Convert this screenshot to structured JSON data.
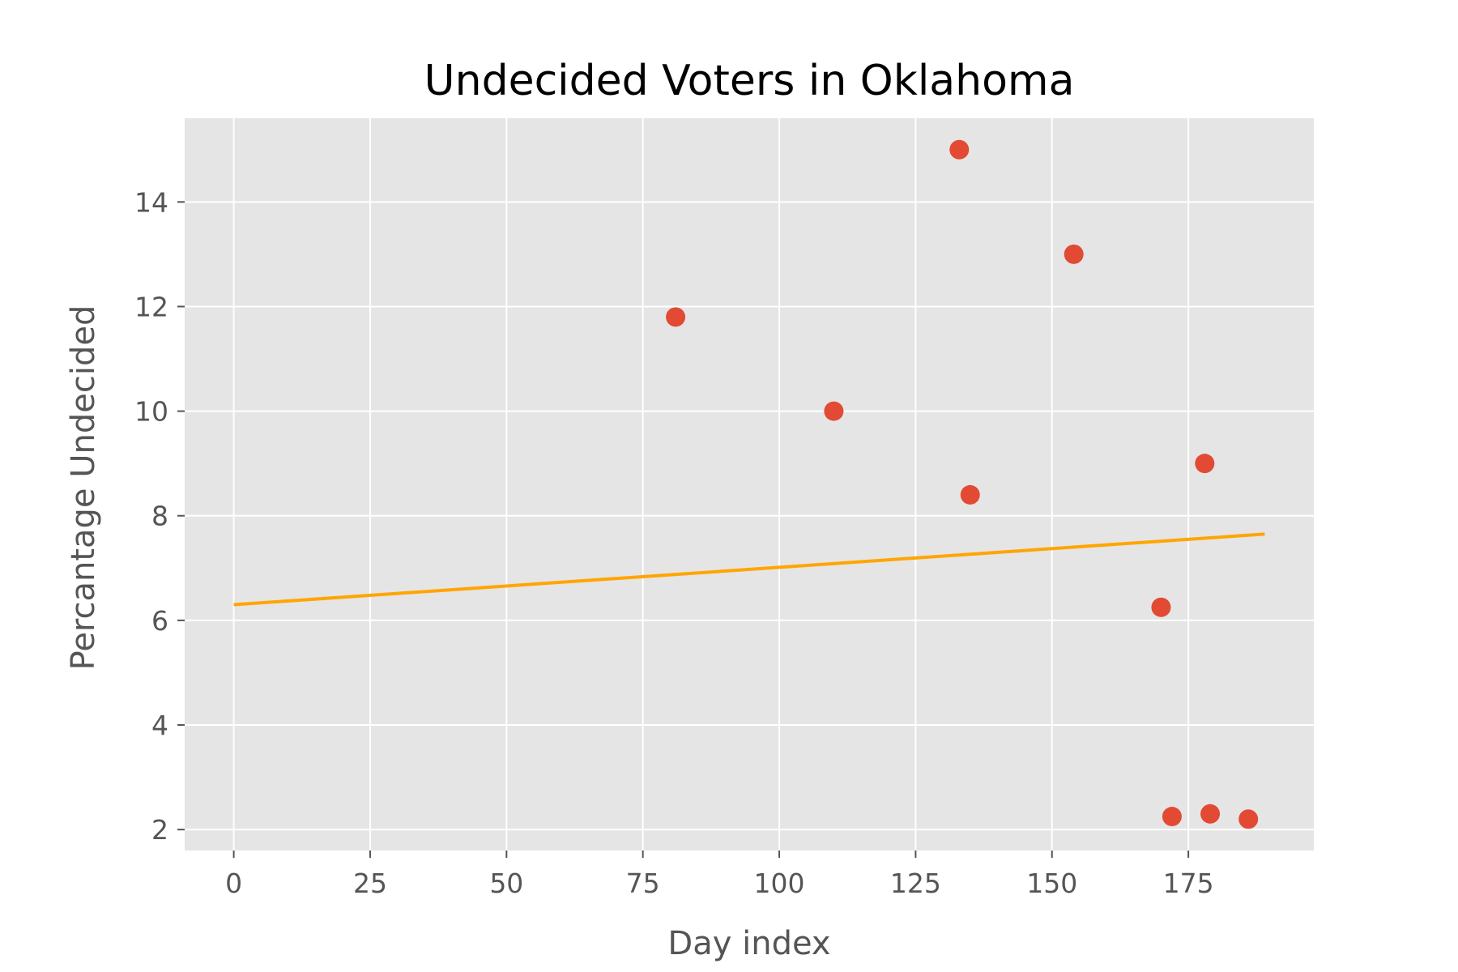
{
  "chart_data": {
    "type": "scatter",
    "title": "Undecided Voters in Oklahoma",
    "xlabel": "Day index",
    "ylabel": "Percantage Undecided",
    "xlim": [
      -9,
      198
    ],
    "ylim": [
      1.6,
      15.6
    ],
    "x_ticks": [
      0,
      25,
      50,
      75,
      100,
      125,
      150,
      175
    ],
    "y_ticks": [
      2,
      4,
      6,
      8,
      10,
      12,
      14
    ],
    "grid": true,
    "background": "#e5e5e5",
    "series": [
      {
        "type": "scatter",
        "color": "#e24a33",
        "points": [
          {
            "x": 81,
            "y": 11.8
          },
          {
            "x": 110,
            "y": 10.0
          },
          {
            "x": 133,
            "y": 15.0
          },
          {
            "x": 135,
            "y": 8.4
          },
          {
            "x": 154,
            "y": 13.0
          },
          {
            "x": 170,
            "y": 6.25
          },
          {
            "x": 172,
            "y": 2.25
          },
          {
            "x": 178,
            "y": 9.0
          },
          {
            "x": 179,
            "y": 2.3
          },
          {
            "x": 186,
            "y": 2.2
          }
        ]
      },
      {
        "type": "line",
        "color": "#ffa500",
        "points": [
          {
            "x": 0,
            "y": 6.3
          },
          {
            "x": 189,
            "y": 7.65
          }
        ]
      }
    ]
  }
}
